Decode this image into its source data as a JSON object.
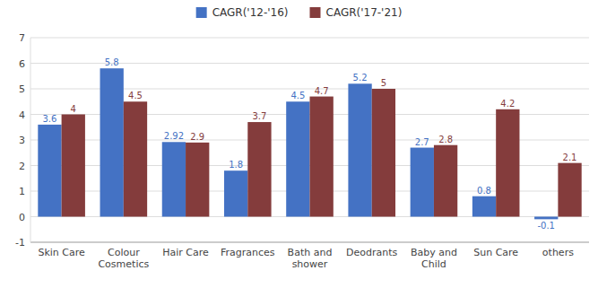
{
  "chart_data": {
    "type": "bar",
    "categories": [
      "Skin Care",
      "Colour\nCosmetics",
      "Hair Care",
      "Fragrances",
      "Bath and\nshower",
      "Deodrants",
      "Baby and\nChild",
      "Sun Care",
      "others"
    ],
    "series": [
      {
        "name": "CAGR('12-'16)",
        "color": "#4472C4",
        "values": [
          3.6,
          5.8,
          2.92,
          1.8,
          4.5,
          5.2,
          2.7,
          0.8,
          -0.1
        ]
      },
      {
        "name": "CAGR('17-'21)",
        "color": "#843C3C",
        "values": [
          4,
          4.5,
          2.9,
          3.7,
          4.7,
          5,
          2.8,
          4.2,
          2.1
        ]
      }
    ],
    "ylim": [
      -1,
      7
    ],
    "yticks": [
      -1,
      0,
      1,
      2,
      3,
      4,
      5,
      6,
      7
    ],
    "grid": true,
    "legend": "top",
    "data_labels": true
  }
}
